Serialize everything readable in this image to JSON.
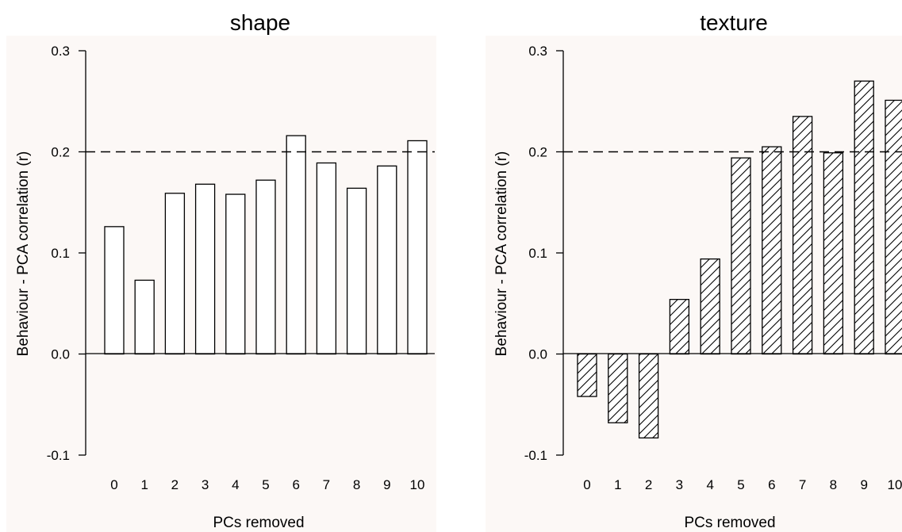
{
  "chart_data": [
    {
      "type": "bar",
      "title": "shape",
      "xlabel": "PCs removed",
      "ylabel": "Behaviour - PCA correlation (r)",
      "ylim": [
        -0.1,
        0.3
      ],
      "yticks": [
        "-0.1",
        "0.0",
        "0.1",
        "0.2",
        "0.3"
      ],
      "categories": [
        "0",
        "1",
        "2",
        "3",
        "4",
        "5",
        "6",
        "7",
        "8",
        "9",
        "10"
      ],
      "values": [
        0.126,
        0.073,
        0.159,
        0.168,
        0.158,
        0.172,
        0.216,
        0.189,
        0.164,
        0.186,
        0.211
      ],
      "reference_line": 0.2,
      "bar_fill": "plain",
      "background": "#fcf8f6"
    },
    {
      "type": "bar",
      "title": "texture",
      "xlabel": "PCs removed",
      "ylabel": "Behaviour - PCA correlation (r)",
      "ylim": [
        -0.1,
        0.3
      ],
      "yticks": [
        "-0.1",
        "0.0",
        "0.1",
        "0.2",
        "0.3"
      ],
      "categories": [
        "0",
        "1",
        "2",
        "3",
        "4",
        "5",
        "6",
        "7",
        "8",
        "9",
        "10"
      ],
      "values": [
        -0.042,
        -0.068,
        -0.083,
        0.054,
        0.094,
        0.194,
        0.205,
        0.235,
        0.199,
        0.27,
        0.251
      ],
      "reference_line": 0.2,
      "bar_fill": "hatched",
      "background": "#fcf8f6"
    }
  ]
}
